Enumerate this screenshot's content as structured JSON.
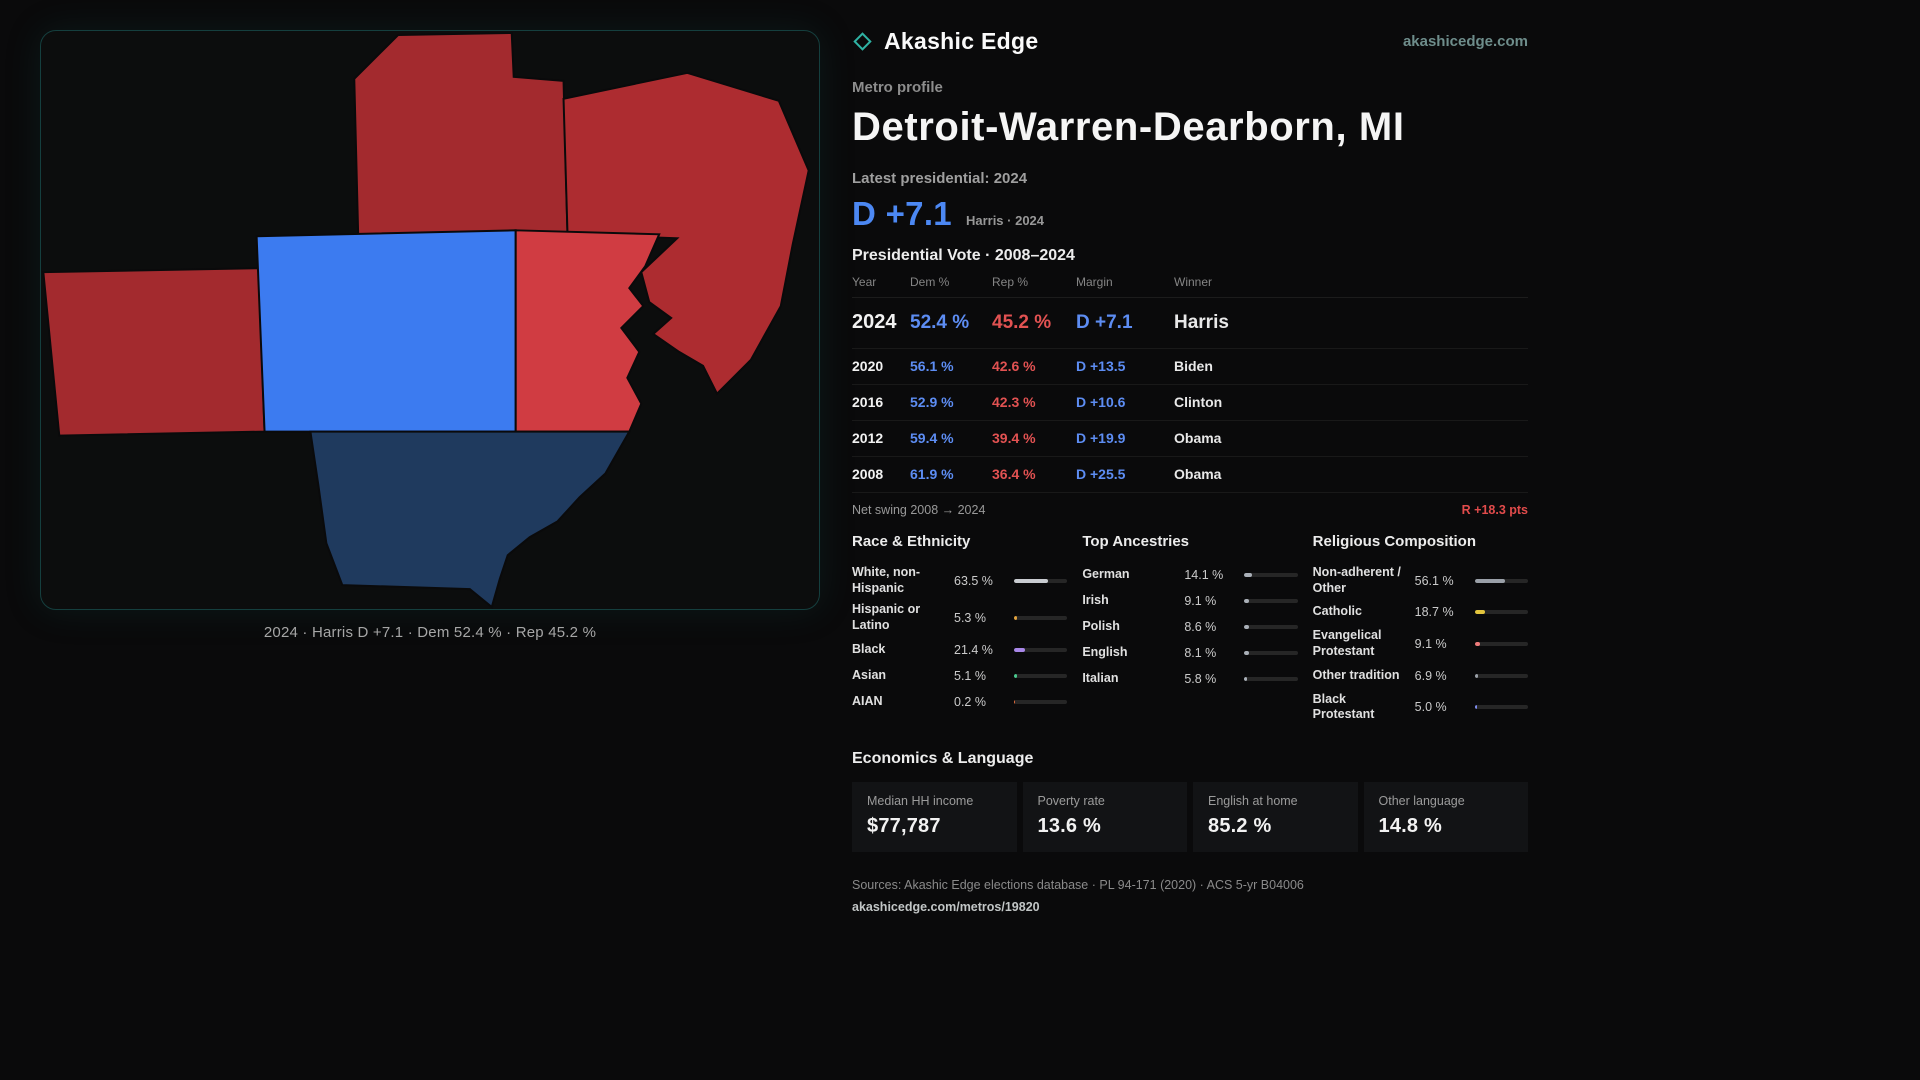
{
  "brand": {
    "name": "Akashic Edge",
    "site": "akashicedge.com"
  },
  "profile": {
    "kicker": "Metro profile",
    "title": "Detroit-Warren-Dearborn, MI",
    "latest_label": "Latest presidential: 2024",
    "margin": "D +7.1",
    "margin_note": "Harris · 2024"
  },
  "map": {
    "caption": "2024 · Harris D +7.1 · Dem 52.4 % · Rep 45.2 %",
    "counties": [
      {
        "name": "west",
        "color": "#a32a2e"
      },
      {
        "name": "top-center",
        "color": "#a32a2e"
      },
      {
        "name": "northeast",
        "color": "#ad2c30"
      },
      {
        "name": "center-blue",
        "color": "#3c7bf0"
      },
      {
        "name": "east",
        "color": "#d03c42"
      },
      {
        "name": "south-navy",
        "color": "#1f3a5e"
      }
    ]
  },
  "vote": {
    "title": "Presidential Vote · 2008–2024",
    "columns": [
      "Year",
      "Dem %",
      "Rep %",
      "Margin",
      "Winner"
    ],
    "rows": [
      {
        "year": "2024",
        "dem": "52.4 %",
        "rep": "45.2 %",
        "margin": "D +7.1",
        "winner": "Harris"
      },
      {
        "year": "2020",
        "dem": "56.1 %",
        "rep": "42.6 %",
        "margin": "D +13.5",
        "winner": "Biden"
      },
      {
        "year": "2016",
        "dem": "52.9 %",
        "rep": "42.3 %",
        "margin": "D +10.6",
        "winner": "Clinton"
      },
      {
        "year": "2012",
        "dem": "59.4 %",
        "rep": "39.4 %",
        "margin": "D +19.9",
        "winner": "Obama"
      },
      {
        "year": "2008",
        "dem": "61.9 %",
        "rep": "36.4 %",
        "margin": "D +25.5",
        "winner": "Obama"
      }
    ],
    "swing_label": "Net swing 2008 → 2024",
    "swing_value": "R +18.3 pts"
  },
  "demographics": {
    "race": {
      "title": "Race & Ethnicity",
      "rows": [
        {
          "label": "White, non-Hispanic",
          "value": "63.5 %",
          "pct": 63.5,
          "color": "#c9ccd1"
        },
        {
          "label": "Hispanic or Latino",
          "value": "5.3 %",
          "pct": 5.3,
          "color": "#e2a33e"
        },
        {
          "label": "Black",
          "value": "21.4 %",
          "pct": 21.4,
          "color": "#a887e8"
        },
        {
          "label": "Asian",
          "value": "5.1 %",
          "pct": 5.1,
          "color": "#49c98e"
        },
        {
          "label": "AIAN",
          "value": "0.2 %",
          "pct": 0.2,
          "color": "#e06a3a"
        }
      ]
    },
    "ancestries": {
      "title": "Top Ancestries",
      "rows": [
        {
          "label": "German",
          "value": "14.1 %",
          "pct": 14.1,
          "color": "#aab0b8"
        },
        {
          "label": "Irish",
          "value": "9.1 %",
          "pct": 9.1,
          "color": "#aab0b8"
        },
        {
          "label": "Polish",
          "value": "8.6 %",
          "pct": 8.6,
          "color": "#aab0b8"
        },
        {
          "label": "English",
          "value": "8.1 %",
          "pct": 8.1,
          "color": "#aab0b8"
        },
        {
          "label": "Italian",
          "value": "5.8 %",
          "pct": 5.8,
          "color": "#aab0b8"
        }
      ]
    },
    "religion": {
      "title": "Religious Composition",
      "rows": [
        {
          "label": "Non-adherent / Other",
          "value": "56.1 %",
          "pct": 56.1,
          "color": "#9aa0a8"
        },
        {
          "label": "Catholic",
          "value": "18.7 %",
          "pct": 18.7,
          "color": "#e3c53d"
        },
        {
          "label": "Evangelical Protestant",
          "value": "9.1 %",
          "pct": 9.1,
          "color": "#ef7b7b"
        },
        {
          "label": "Other tradition",
          "value": "6.9 %",
          "pct": 6.9,
          "color": "#9aa0a8"
        },
        {
          "label": "Black Protestant",
          "value": "5.0 %",
          "pct": 5.0,
          "color": "#7f8cf0"
        }
      ]
    }
  },
  "economics": {
    "title": "Economics & Language",
    "stats": [
      {
        "label": "Median HH income",
        "value": "$77,787"
      },
      {
        "label": "Poverty rate",
        "value": "13.6 %"
      },
      {
        "label": "English at home",
        "value": "85.2 %"
      },
      {
        "label": "Other language",
        "value": "14.8 %"
      }
    ]
  },
  "footer": {
    "sources": "Sources: Akashic Edge elections database · PL 94-171 (2020) · ACS 5-yr B04006",
    "link": "akashicedge.com/metros/19820"
  },
  "colors": {
    "dem": "#5d8df3",
    "rep": "#e25252",
    "accent_teal": "#2fb3a4"
  }
}
